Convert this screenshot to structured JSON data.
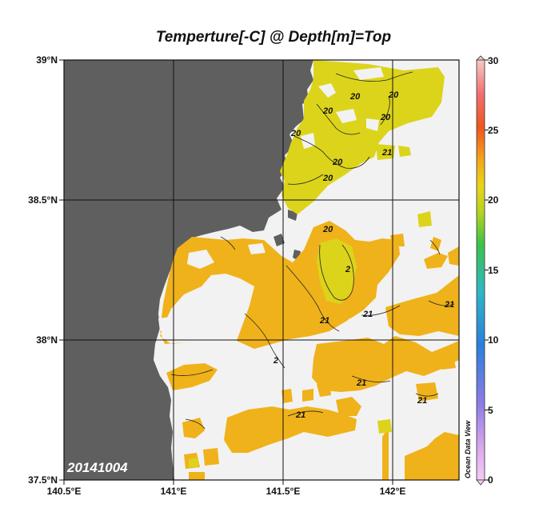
{
  "title": "Temperture[-C] @ Depth[m]=Top",
  "date_stamp": "20141004",
  "watermark": "Ocean Data View",
  "x_ticks": [
    "140.5°E",
    "141°E",
    "141.5°E",
    "142°E"
  ],
  "y_ticks": [
    "39°N",
    "38.5°N",
    "38°N",
    "37.5°N"
  ],
  "colorbar": {
    "ticks": [
      "30",
      "25",
      "20",
      "15",
      "10",
      "5",
      "0"
    ],
    "min": 0,
    "max": 30
  },
  "contour_labels": [
    "20",
    "20",
    "20",
    "20",
    "20",
    "20",
    "21",
    "20",
    "20",
    "21",
    "21",
    "2",
    "21",
    "21",
    "21",
    "21",
    "2"
  ],
  "colors": {
    "land": "#5f5f5f",
    "no_data": "#f2f2f2",
    "temp_20": "#dcd41a",
    "temp_21": "#f0b21a",
    "temp_22": "#f2a51c"
  }
}
